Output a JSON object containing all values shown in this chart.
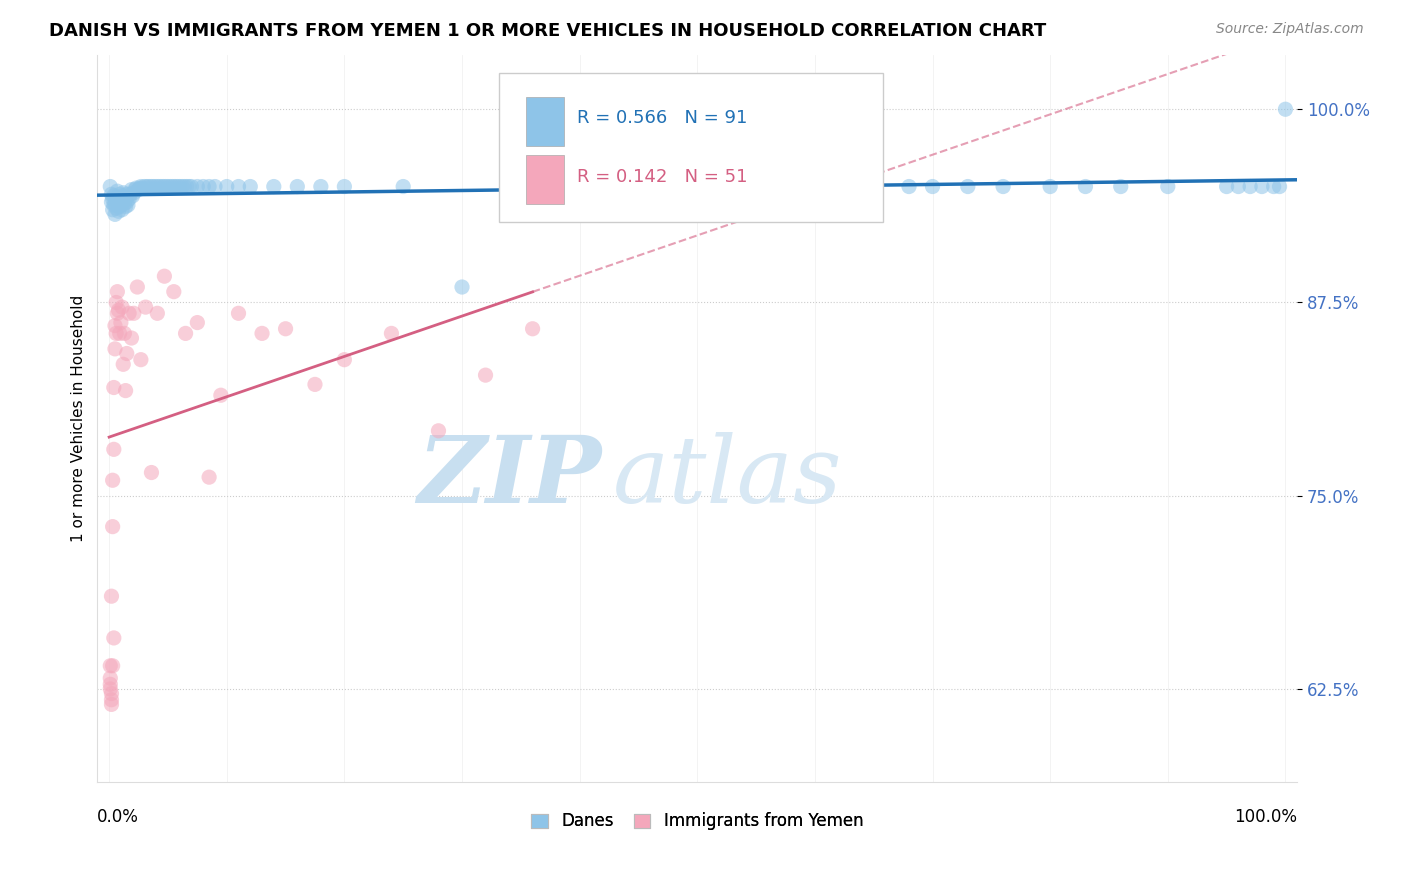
{
  "title": "DANISH VS IMMIGRANTS FROM YEMEN 1 OR MORE VEHICLES IN HOUSEHOLD CORRELATION CHART",
  "source": "Source: ZipAtlas.com",
  "ylabel": "1 or more Vehicles in Household",
  "legend_danes": "Danes",
  "legend_immigrants": "Immigrants from Yemen",
  "R_danes": 0.566,
  "N_danes": 91,
  "R_immigrants": 0.142,
  "N_immigrants": 51,
  "danes_color": "#8ec4e8",
  "immigrants_color": "#f4a7bb",
  "danes_line_color": "#2171b5",
  "immigrants_line_color": "#d45f82",
  "background_color": "#ffffff",
  "watermark_zip": "ZIP",
  "watermark_atlas": "atlas",
  "ytick_labels": [
    "100.0%",
    "87.5%",
    "75.0%",
    "62.5%"
  ],
  "ytick_values": [
    1.0,
    0.875,
    0.75,
    0.625
  ],
  "ylim_min": 0.565,
  "ylim_max": 1.035,
  "xlim_min": -0.01,
  "xlim_max": 1.01,
  "scatter_size": 120,
  "scatter_alpha": 0.55,
  "danes_x": [
    0.001,
    0.002,
    0.002,
    0.003,
    0.003,
    0.004,
    0.004,
    0.005,
    0.005,
    0.006,
    0.006,
    0.007,
    0.007,
    0.008,
    0.008,
    0.009,
    0.009,
    0.01,
    0.01,
    0.011,
    0.011,
    0.012,
    0.012,
    0.013,
    0.013,
    0.014,
    0.014,
    0.015,
    0.015,
    0.016,
    0.017,
    0.018,
    0.019,
    0.02,
    0.021,
    0.022,
    0.023,
    0.025,
    0.026,
    0.027,
    0.028,
    0.03,
    0.032,
    0.034,
    0.036,
    0.038,
    0.04,
    0.042,
    0.044,
    0.046,
    0.048,
    0.05,
    0.052,
    0.054,
    0.056,
    0.058,
    0.06,
    0.062,
    0.064,
    0.066,
    0.068,
    0.07,
    0.075,
    0.08,
    0.085,
    0.09,
    0.1,
    0.11,
    0.12,
    0.14,
    0.16,
    0.18,
    0.2,
    0.25,
    0.3,
    0.65,
    0.68,
    0.7,
    0.73,
    0.76,
    0.8,
    0.83,
    0.86,
    0.9,
    0.95,
    0.96,
    0.97,
    0.98,
    0.99,
    0.995,
    1.0
  ],
  "danes_y": [
    0.95,
    0.94,
    0.945,
    0.935,
    0.942,
    0.938,
    0.944,
    0.932,
    0.939,
    0.941,
    0.936,
    0.943,
    0.947,
    0.934,
    0.94,
    0.937,
    0.945,
    0.941,
    0.938,
    0.944,
    0.935,
    0.94,
    0.946,
    0.939,
    0.943,
    0.937,
    0.942,
    0.945,
    0.94,
    0.938,
    0.942,
    0.945,
    0.948,
    0.944,
    0.946,
    0.948,
    0.949,
    0.948,
    0.949,
    0.95,
    0.949,
    0.95,
    0.95,
    0.95,
    0.95,
    0.95,
    0.95,
    0.95,
    0.95,
    0.95,
    0.95,
    0.95,
    0.95,
    0.95,
    0.95,
    0.95,
    0.95,
    0.95,
    0.95,
    0.95,
    0.95,
    0.95,
    0.95,
    0.95,
    0.95,
    0.95,
    0.95,
    0.95,
    0.95,
    0.95,
    0.95,
    0.95,
    0.95,
    0.95,
    0.885,
    0.95,
    0.95,
    0.95,
    0.95,
    0.95,
    0.95,
    0.95,
    0.95,
    0.95,
    0.95,
    0.95,
    0.95,
    0.95,
    0.95,
    0.95,
    1.0
  ],
  "immigrants_x": [
    0.001,
    0.001,
    0.002,
    0.002,
    0.003,
    0.003,
    0.004,
    0.004,
    0.005,
    0.005,
    0.006,
    0.006,
    0.007,
    0.007,
    0.008,
    0.009,
    0.01,
    0.011,
    0.012,
    0.013,
    0.014,
    0.015,
    0.017,
    0.019,
    0.021,
    0.024,
    0.027,
    0.031,
    0.036,
    0.041,
    0.047,
    0.055,
    0.065,
    0.075,
    0.085,
    0.095,
    0.11,
    0.13,
    0.15,
    0.175,
    0.2,
    0.24,
    0.28,
    0.32,
    0.36,
    0.001,
    0.001,
    0.002,
    0.002,
    0.003,
    0.004
  ],
  "immigrants_y": [
    0.64,
    0.628,
    0.618,
    0.685,
    0.73,
    0.76,
    0.78,
    0.82,
    0.845,
    0.86,
    0.875,
    0.855,
    0.868,
    0.882,
    0.87,
    0.855,
    0.862,
    0.872,
    0.835,
    0.855,
    0.818,
    0.842,
    0.868,
    0.852,
    0.868,
    0.885,
    0.838,
    0.872,
    0.765,
    0.868,
    0.892,
    0.882,
    0.855,
    0.862,
    0.762,
    0.815,
    0.868,
    0.855,
    0.858,
    0.822,
    0.838,
    0.855,
    0.792,
    0.828,
    0.858,
    0.632,
    0.625,
    0.622,
    0.615,
    0.64,
    0.658
  ],
  "title_fontsize": 13,
  "source_fontsize": 10,
  "ylabel_fontsize": 11,
  "ytick_fontsize": 12,
  "legend_fontsize": 12,
  "annotation_fontsize": 13
}
